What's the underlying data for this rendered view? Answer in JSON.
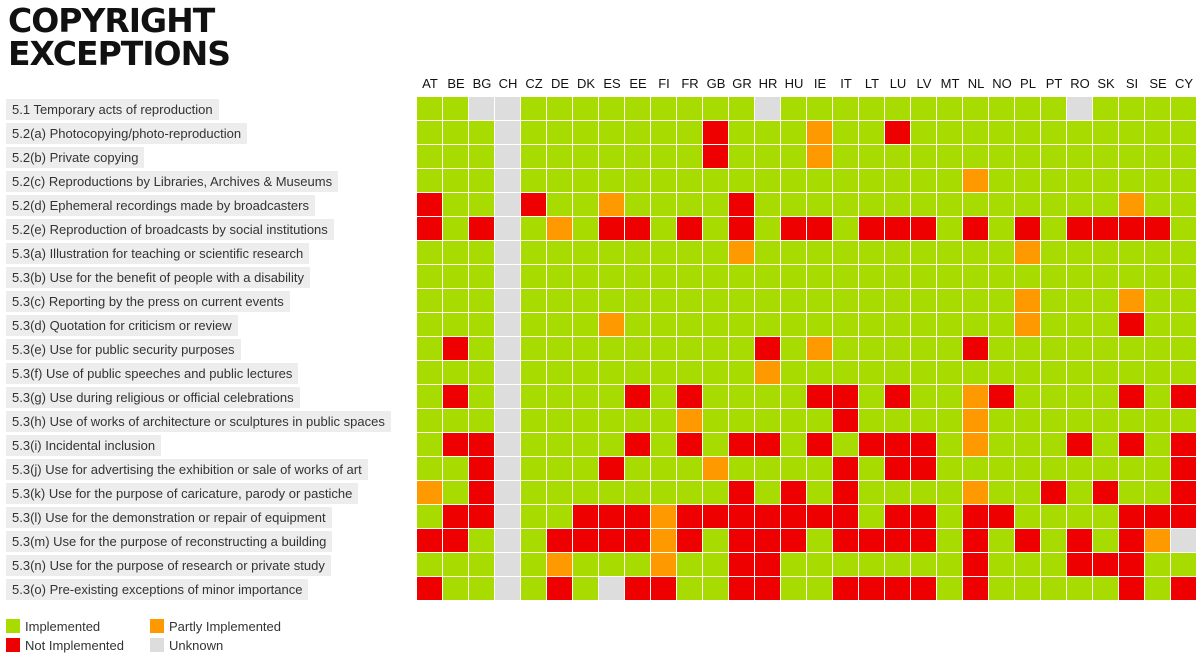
{
  "logo": {
    "line1": "COPYRIGHT",
    "line2": "EXCEPTIONS"
  },
  "colors": {
    "I": "#a8dc00",
    "P": "#ff9900",
    "N": "#ee0000",
    "U": "#dddddd"
  },
  "legend": [
    {
      "key": "I",
      "label": "Implemented"
    },
    {
      "key": "P",
      "label": "Partly Implemented"
    },
    {
      "key": "N",
      "label": "Not Implemented"
    },
    {
      "key": "U",
      "label": "Unknown"
    }
  ],
  "chart_data": {
    "type": "heatmap",
    "columns": [
      "AT",
      "BE",
      "BG",
      "CH",
      "CZ",
      "DE",
      "DK",
      "ES",
      "EE",
      "FI",
      "FR",
      "GB",
      "GR",
      "HR",
      "HU",
      "IE",
      "IT",
      "LT",
      "LU",
      "LV",
      "MT",
      "NL",
      "NO",
      "PL",
      "PT",
      "RO",
      "SK",
      "SI",
      "SE",
      "CY"
    ],
    "rows": [
      {
        "label": "5.1 Temporary acts of reproduction",
        "values": "IIUUIIIIIIIIIUIIIIIIIIIIIUIIII"
      },
      {
        "label": "5.2(a) Photocopying/photo-reproduction",
        "values": "IIIUIIIIIIINIIIPIINIIIIIIIIIII"
      },
      {
        "label": "5.2(b) Private copying",
        "values": "IIIUIIIIIIINIIIPIIIIIIIIIIIIII"
      },
      {
        "label": "5.2(c) Reproductions by Libraries, Archives & Museums",
        "values": "IIIUIIIIIIIIIIIIIIIIIPIIIIIIII"
      },
      {
        "label": "5.2(d) Ephemeral recordings made by broadcasters",
        "values": "NIIUNIIPIIIINIIIIIIIIIIIIIIPII"
      },
      {
        "label": "5.2(e) Reproduction of broadcasts by social institutions",
        "values": "NINUIPINNINININNINNNINININNNNI"
      },
      {
        "label": "5.3(a) Illustration for teaching or scientific research",
        "values": "IIIUIIIIIIIIPIIIIIIIIIIPIIIIII"
      },
      {
        "label": "5.3(b) Use for the benefit of people with a disability",
        "values": "IIIUIIIIIIIIIIIIIIIIIIIIIIIIII"
      },
      {
        "label": "5.3(c) Reporting by the press on current events",
        "values": "IIIUIIIIIIIIIIIIIIIIIIIPIIIPII"
      },
      {
        "label": "5.3(d) Quotation for criticism or review",
        "values": "IIIUIIIPIIIIIIIIIIIIIIIPIIINII"
      },
      {
        "label": "5.3(e) Use for public security purposes",
        "values": "INIUIIIIIIIIINIPIIIIINIIIIIIII"
      },
      {
        "label": "5.3(f) Use of public speeches and public lectures",
        "values": "IIIUIIIIIIIIIPIIIIIIIIIIIIIIII"
      },
      {
        "label": "5.3(g) Use during religious or official celebrations",
        "values": "INIUIIIININIIIINNINIIPNIIIININ"
      },
      {
        "label": "5.3(h) Use of works of architecture or sculptures in public spaces",
        "values": "IIIUIIIIIIPIIIIINIIIIPIIIIIIII"
      },
      {
        "label": "5.3(i) Incidental inclusion",
        "values": "INNUIIIINININNININNNIPIIINININ"
      },
      {
        "label": "5.3(j) Use for advertising the exhibition or sale of works of art",
        "values": "IINUIIINIIIPIIIININNIIIIIIIIIN"
      },
      {
        "label": "5.3(k) Use for the purpose of caricature, parody or pastiche",
        "values": "PINUIIIIIIIINININIIIIPIININIIN"
      },
      {
        "label": "5.3(l) Use for the demonstration or repair of equipment",
        "values": "INNUIINNNPNNNNNNNINNINNIIIINNN"
      },
      {
        "label": "5.3(m) Use for the purpose of reconstructing a building",
        "values": "NNIUINNNNPNINNNINNNNININININPU"
      },
      {
        "label": "5.3(n) Use for the purpose of research or private study",
        "values": "IIIUIPIIIPIINNIIIIIIINIIINNNII"
      },
      {
        "label": "5.3(o) Pre-existing exceptions of minor importance",
        "values": "NIIUINIUNNIINNIINNNNINIIIIININ"
      }
    ]
  }
}
